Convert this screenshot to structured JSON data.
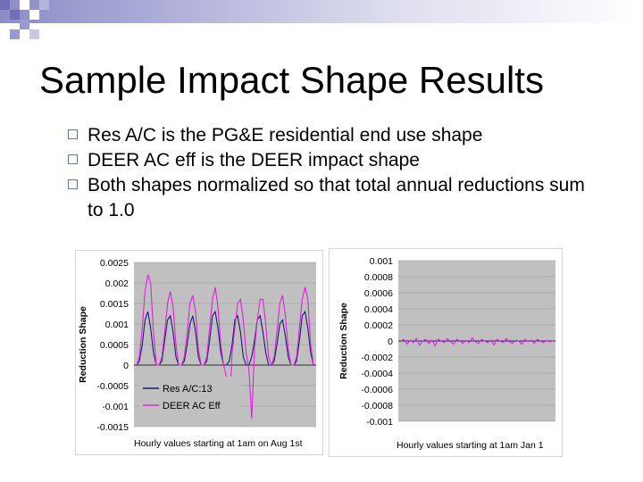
{
  "slide": {
    "title": "Sample Impact Shape Results",
    "bullets": [
      "Res A/C is the PG&E residential end use shape",
      "DEER AC eff is the DEER impact shape",
      "Both shapes normalized so that total annual reductions sum to 1.0"
    ],
    "bullet_icon": "hollow-square-icon",
    "accent_color": "#6f86c6"
  },
  "chart_data": [
    {
      "type": "line",
      "title": "",
      "xlabel": "Hourly values starting at 1am on Aug 1st",
      "ylabel": "Reduction Shape",
      "ylim": [
        -0.0015,
        0.0025
      ],
      "yticks": [
        "0.0025",
        "0.002",
        "0.0015",
        "0.001",
        "0.0005",
        "0",
        "-0.0005",
        "-0.001",
        "-0.0015"
      ],
      "grid": true,
      "legend": "bottom-left",
      "plot_background": "#c0c0c0",
      "series": [
        {
          "name": "Res A/C:13",
          "color": "#1a1a70",
          "values": [
            0,
            0.0001,
            0.0005,
            0.0011,
            0.0013,
            0.0009,
            0.0003,
            0,
            0,
            0.0001,
            0.0006,
            0.0011,
            0.0012,
            0.0008,
            0.0002,
            0,
            0,
            0.0001,
            0.0005,
            0.001,
            0.0012,
            0.0008,
            0.0002,
            0,
            0,
            0.0001,
            0.0006,
            0.0012,
            0.0013,
            0.0009,
            0.0003,
            0,
            0,
            0.0001,
            0.0005,
            0.0011,
            0.0012,
            0.0008,
            0.0002,
            0,
            0,
            0.0002,
            0.0006,
            0.0011,
            0.0012,
            0.0008,
            0.0003,
            0,
            0,
            0.0001,
            0.0005,
            0.001,
            0.0011,
            0.0007,
            0.0002,
            0,
            0,
            0.0001,
            0.0006,
            0.0012,
            0.0013,
            0.0009,
            0.0003,
            0
          ]
        },
        {
          "name": "DEER AC Eff",
          "color": "#e020e0",
          "values": [
            0,
            0.0002,
            0.0009,
            0.0018,
            0.0022,
            0.002,
            0.0008,
            0,
            0,
            0.0002,
            0.0008,
            0.0015,
            0.0018,
            0.0014,
            0.0005,
            0,
            0,
            0.0002,
            0.0008,
            0.0015,
            0.0017,
            0.0013,
            0.0004,
            0,
            0,
            0.0002,
            0.0009,
            0.0016,
            0.0019,
            0.0014,
            0.0005,
            0,
            -0.0003,
            -0.0012,
            0.0003,
            0.0009,
            0.0015,
            0.0016,
            0.0011,
            0.0003,
            -0.0001,
            -0.0013,
            0.0004,
            0.0011,
            0.0016,
            0.0016,
            0.001,
            0.0002,
            0,
            0.0002,
            0.0008,
            0.0015,
            0.0017,
            0.0012,
            0.0004,
            0,
            0,
            0.0002,
            0.0009,
            0.0016,
            0.0019,
            0.0016,
            0.0005,
            0
          ]
        }
      ]
    },
    {
      "type": "line",
      "title": "",
      "xlabel": "Hourly values starting at 1am Jan 1",
      "ylabel": "Reduction Shape",
      "ylim": [
        -0.001,
        0.001
      ],
      "yticks": [
        "0.001",
        "0.0008",
        "0.0006",
        "0.0004",
        "0.0002",
        "0",
        "-0.0002",
        "-0.0004",
        "-0.0006",
        "-0.0008",
        "-0.001"
      ],
      "grid": true,
      "legend": "none",
      "plot_background": "#c0c0c0",
      "series": [
        {
          "name": "",
          "color": "#1a1a70",
          "values": [
            0,
            0,
            0,
            0,
            0,
            0,
            0,
            0,
            0,
            0,
            0,
            0,
            0,
            0,
            0,
            0,
            0,
            0,
            0,
            0,
            0,
            0,
            0,
            0,
            0,
            0,
            0,
            0,
            0,
            0,
            0,
            0,
            0,
            0,
            0,
            0,
            0,
            0,
            0,
            0,
            0,
            0,
            0,
            0,
            0,
            0,
            0,
            0,
            0,
            0
          ]
        },
        {
          "name": "",
          "color": "#e020e0",
          "values": [
            0,
            2e-05,
            -4e-05,
            1e-05,
            -2e-05,
            3e-05,
            -5e-05,
            0,
            2e-05,
            -3e-05,
            1e-05,
            -6e-05,
            2e-05,
            0,
            -2e-05,
            3e-05,
            -1e-05,
            -4e-05,
            2e-05,
            0,
            -3e-05,
            1e-05,
            -2e-05,
            4e-05,
            -1e-05,
            -3e-05,
            2e-05,
            0,
            -2e-05,
            1e-05,
            -5e-05,
            2e-05,
            0,
            -2e-05,
            3e-05,
            -1e-05,
            -3e-05,
            1e-05,
            0,
            -4e-05,
            2e-05,
            -1e-05,
            1e-05,
            -3e-05,
            2e-05,
            0,
            -2e-05,
            1e-05,
            -1e-05,
            0
          ]
        }
      ]
    }
  ]
}
